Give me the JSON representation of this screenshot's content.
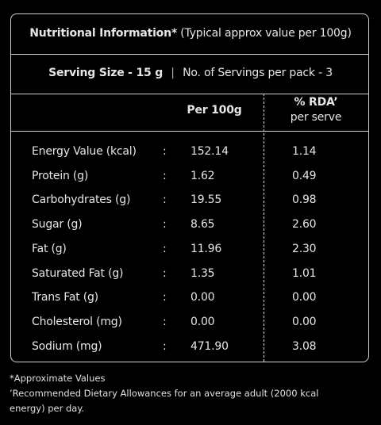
{
  "header": {
    "title": "Nutritional Information*",
    "subtitle": "(Typical approx value per 100g)"
  },
  "serving": {
    "size": "Serving Size - 15 g",
    "separator": "|",
    "servings": "No. of Servings per pack - 3"
  },
  "table": {
    "columns": [
      "Per 100g",
      "% RDA’"
    ],
    "column_sub": "per serve",
    "separator": ":",
    "rows": [
      [
        "Energy Value (kcal)",
        "152.14",
        "1.14"
      ],
      [
        "Protein (g)",
        "1.62",
        "0.49"
      ],
      [
        "Carbohydrates (g)",
        "19.55",
        "0.98"
      ],
      [
        "Sugar (g)",
        "8.65",
        "2.60"
      ],
      [
        "Fat (g)",
        "11.96",
        "2.30"
      ],
      [
        "Saturated Fat (g)",
        "1.35",
        "1.01"
      ],
      [
        "Trans Fat (g)",
        "0.00",
        "0.00"
      ],
      [
        "Cholesterol (mg)",
        "0.00",
        "0.00"
      ],
      [
        "Sodium (mg)",
        "471.90",
        "3.08"
      ]
    ]
  },
  "footnotes": [
    "*Approximate Values",
    "’Recommended Dietary Allowances for an average adult (2000 kcal",
    "energy) per day."
  ]
}
